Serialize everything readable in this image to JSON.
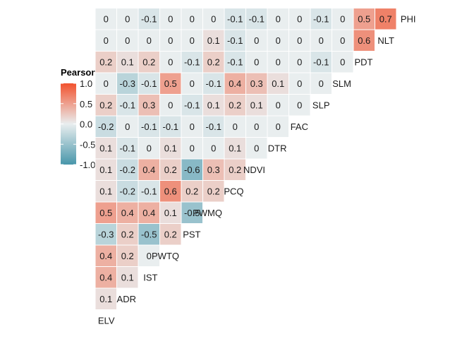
{
  "chart_data": {
    "type": "heatmap",
    "variables": [
      "ELV",
      "ADR",
      "IST",
      "PWTQ",
      "PST",
      "PWMQ",
      "PCQ",
      "NDVI",
      "DTR",
      "FAC",
      "SLP",
      "SLM",
      "PDT",
      "NLT",
      "PHI"
    ],
    "diagonal_labels": [
      "ELV",
      "ADR",
      "IST",
      "PWTQ",
      "PST",
      "PWMQ",
      "PCQ",
      "NDVI",
      "DTR",
      "FAC",
      "SLP",
      "SLM",
      "PDT",
      "NLT",
      "PHI"
    ],
    "matrix": [
      {
        "row": "ADR",
        "values": [
          "0.1"
        ]
      },
      {
        "row": "IST",
        "values": [
          "0.4",
          "0.1"
        ]
      },
      {
        "row": "PWTQ",
        "values": [
          "0.4",
          "0.2",
          "0"
        ]
      },
      {
        "row": "PST",
        "values": [
          "-0.3",
          "0.2",
          "-0.5",
          "0.2"
        ]
      },
      {
        "row": "PWMQ",
        "values": [
          "0.5",
          "0.4",
          "0.4",
          "0.1",
          "-0.5"
        ]
      },
      {
        "row": "PCQ",
        "values": [
          "0.1",
          "-0.2",
          "-0.1",
          "0.6",
          "0.2",
          "0.2"
        ]
      },
      {
        "row": "NDVI",
        "values": [
          "0.1",
          "-0.2",
          "0.4",
          "0.2",
          "-0.6",
          "0.3",
          "0.2"
        ]
      },
      {
        "row": "DTR",
        "values": [
          "0.1",
          "-0.1",
          "0",
          "0.1",
          "0",
          "0",
          "0.1",
          "0"
        ]
      },
      {
        "row": "FAC",
        "values": [
          "-0.2",
          "0",
          "-0.1",
          "-0.1",
          "0",
          "-0.1",
          "0",
          "0",
          "0"
        ]
      },
      {
        "row": "SLP",
        "values": [
          "0.2",
          "-0.1",
          "0.3",
          "0",
          "-0.1",
          "0.1",
          "0.2",
          "0.1",
          "0",
          "0"
        ]
      },
      {
        "row": "SLM",
        "values": [
          "0",
          "-0.3",
          "-0.1",
          "0.5",
          "0",
          "-0.1",
          "0.4",
          "0.3",
          "0.1",
          "0",
          "0"
        ]
      },
      {
        "row": "PDT",
        "values": [
          "0.2",
          "0.1",
          "0.2",
          "0",
          "-0.1",
          "0.2",
          "-0.1",
          "0",
          "0",
          "0",
          "-0.1",
          "0"
        ]
      },
      {
        "row": "NLT",
        "values": [
          "0",
          "0",
          "0",
          "0",
          "0",
          "0.1",
          "-0.1",
          "0",
          "0",
          "0",
          "0",
          "0",
          "0.6"
        ]
      },
      {
        "row": "PHI",
        "values": [
          "0",
          "0",
          "-0.1",
          "0",
          "0",
          "0",
          "-0.1",
          "-0.1",
          "0",
          "0",
          "-0.1",
          "0",
          "0.5",
          "0.7"
        ]
      }
    ],
    "legend": {
      "title": "Pearson correlation",
      "ticks": [
        "1.0",
        "0.5",
        "0.0",
        "-0.5",
        "-1.0"
      ],
      "range": [
        -1,
        1
      ],
      "position": "left"
    },
    "colors": {
      "high": "#F2522E",
      "mid": "#E9EEEF",
      "low": "#4896AA"
    }
  }
}
